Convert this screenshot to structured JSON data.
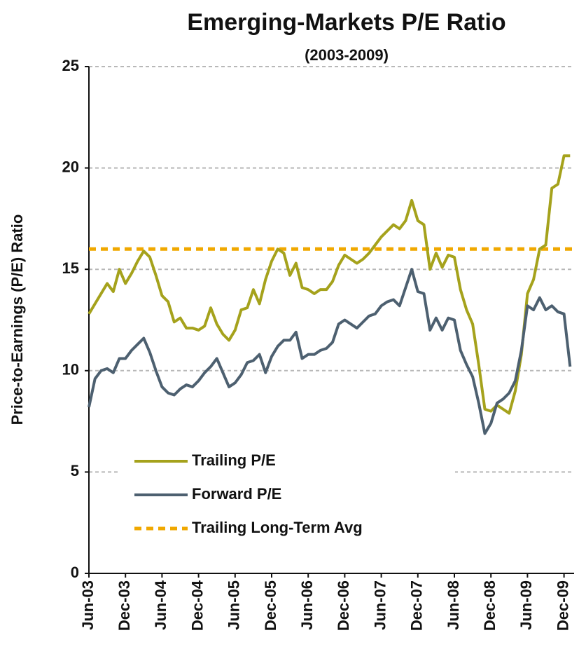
{
  "chart_data": {
    "type": "line",
    "title": "Emerging-Markets P/E Ratio",
    "subtitle": "(2003-2009)",
    "y_label": "Price-to-Earnings (P/E) Ratio",
    "categories": [
      "Jun-03",
      null,
      null,
      null,
      null,
      null,
      "Dec-03",
      null,
      null,
      null,
      null,
      null,
      "Jun-04",
      null,
      null,
      null,
      null,
      null,
      "Dec-04",
      null,
      null,
      null,
      null,
      null,
      "Jun-05",
      null,
      null,
      null,
      null,
      null,
      "Dec-05",
      null,
      null,
      null,
      null,
      null,
      "Jun-06",
      null,
      null,
      null,
      null,
      null,
      "Dec-06",
      null,
      null,
      null,
      null,
      null,
      "Jun-07",
      null,
      null,
      null,
      null,
      null,
      "Dec-07",
      null,
      null,
      null,
      null,
      null,
      "Jun-08",
      null,
      null,
      null,
      null,
      null,
      "Dec-08",
      null,
      null,
      null,
      null,
      null,
      "Jun-09",
      null,
      null,
      null,
      null,
      null,
      "Dec-09",
      null
    ],
    "series": [
      {
        "name": "Trailing P/E",
        "color": "#a5a21c",
        "values": [
          12.8,
          13.3,
          13.8,
          14.3,
          13.9,
          15.0,
          14.3,
          14.8,
          15.4,
          15.9,
          15.6,
          14.7,
          13.7,
          13.4,
          12.4,
          12.6,
          12.1,
          12.1,
          12.0,
          12.2,
          13.1,
          12.3,
          11.8,
          11.5,
          12.0,
          13.0,
          13.1,
          14.0,
          13.3,
          14.5,
          15.4,
          16.0,
          15.8,
          14.7,
          15.3,
          14.1,
          14.0,
          13.8,
          14.0,
          14.0,
          14.4,
          15.2,
          15.7,
          15.5,
          15.3,
          15.5,
          15.8,
          16.2,
          16.6,
          16.9,
          17.2,
          17.0,
          17.4,
          18.4,
          17.4,
          17.2,
          15.0,
          15.8,
          15.1,
          15.7,
          15.6,
          14.0,
          13.0,
          12.3,
          10.3,
          8.1,
          8.0,
          8.3,
          8.1,
          7.9,
          9.0,
          10.8,
          13.8,
          14.5,
          16.0,
          16.2,
          19.0,
          19.2,
          20.6,
          20.6
        ]
      },
      {
        "name": "Forward P/E",
        "color": "#4d6070",
        "values": [
          8.2,
          9.6,
          10.0,
          10.1,
          9.9,
          10.6,
          10.6,
          11.0,
          11.3,
          11.6,
          10.9,
          10.0,
          9.2,
          8.9,
          8.8,
          9.1,
          9.3,
          9.2,
          9.5,
          9.9,
          10.2,
          10.6,
          9.9,
          9.2,
          9.4,
          9.8,
          10.4,
          10.5,
          10.8,
          9.9,
          10.7,
          11.2,
          11.5,
          11.5,
          11.9,
          10.6,
          10.8,
          10.8,
          11.0,
          11.1,
          11.4,
          12.3,
          12.5,
          12.3,
          12.1,
          12.4,
          12.7,
          12.8,
          13.2,
          13.4,
          13.5,
          13.2,
          14.1,
          15.0,
          13.9,
          13.8,
          12.0,
          12.6,
          12.0,
          12.6,
          12.5,
          11.0,
          10.3,
          9.7,
          8.4,
          6.9,
          7.4,
          8.4,
          8.6,
          8.9,
          9.5,
          11.0,
          13.2,
          13.0,
          13.6,
          13.0,
          13.2,
          12.9,
          12.8,
          10.2
        ]
      }
    ],
    "reference_line": {
      "name": "Trailing Long-Term Avg",
      "value": 16,
      "color": "#f0a800"
    },
    "ylim": [
      0,
      25
    ],
    "yticks": [
      0,
      5,
      10,
      15,
      20,
      25
    ],
    "grid": true,
    "legend": "lower left"
  }
}
